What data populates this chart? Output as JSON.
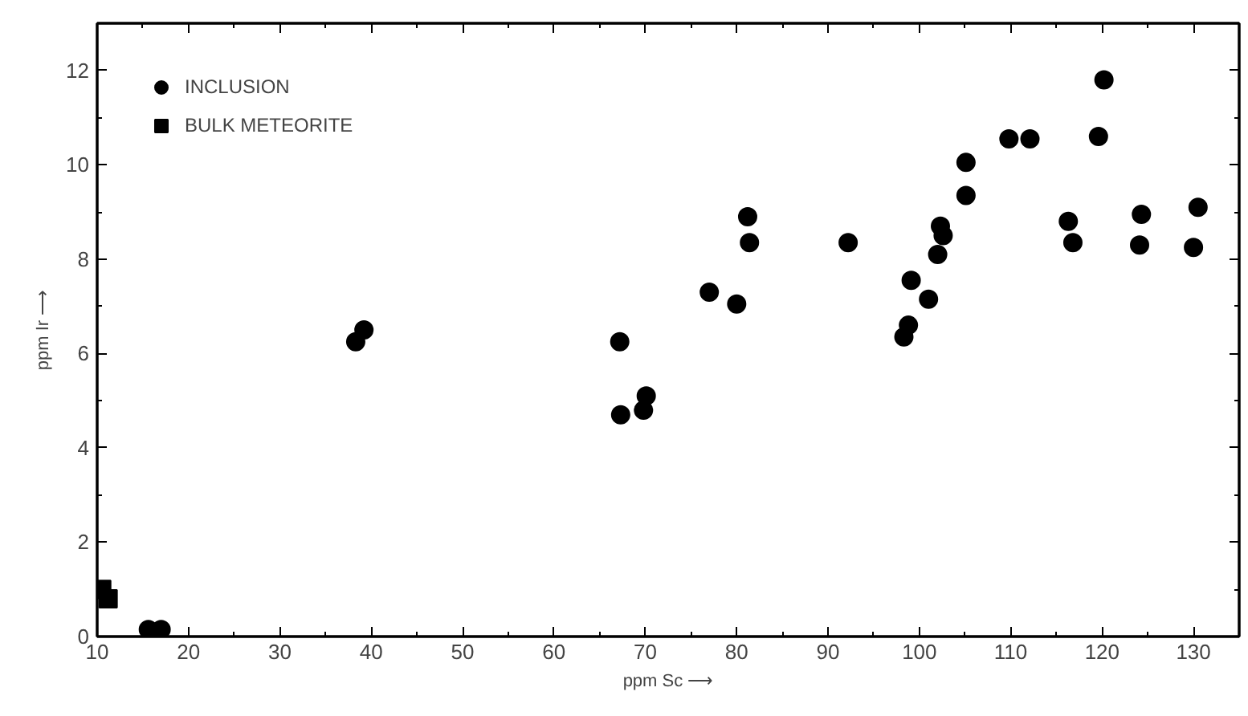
{
  "chart_data": {
    "type": "scatter",
    "xlabel": "ppm Sc ⟶",
    "ylabel": "ppm Ir ⟶",
    "xlim": [
      10,
      135
    ],
    "ylim": [
      0,
      13
    ],
    "xticks": [
      10,
      20,
      30,
      40,
      50,
      60,
      70,
      80,
      90,
      100,
      110,
      120,
      130
    ],
    "yticks": [
      0,
      2,
      4,
      6,
      8,
      10,
      12
    ],
    "grid": false,
    "legend": "top left",
    "series": [
      {
        "name": "INCLUSION",
        "color": "#000000",
        "marker": "circle",
        "x": [
          15.6,
          17.0,
          38.3,
          39.2,
          67.2,
          67.3,
          69.8,
          70.1,
          77,
          80,
          81.2,
          81.4,
          92.2,
          98.3,
          98.8,
          99.1,
          101,
          102,
          102.3,
          102.6,
          105.1,
          105.1,
          109.8,
          112.1,
          116.3,
          116.8,
          119.6,
          120.2,
          124.1,
          124.3,
          130,
          130.5
        ],
        "values": [
          0.15,
          0.15,
          6.25,
          6.5,
          6.25,
          4.7,
          4.8,
          5.1,
          7.3,
          7.05,
          8.9,
          8.35,
          8.35,
          6.35,
          6.6,
          7.55,
          7.15,
          8.1,
          8.7,
          8.5,
          10.05,
          9.35,
          10.55,
          10.55,
          8.8,
          8.35,
          10.6,
          11.8,
          8.3,
          8.95,
          8.25,
          9.1
        ]
      },
      {
        "name": "BULK METEORITE",
        "color": "#000000",
        "marker": "square",
        "x": [
          10.5,
          11.2
        ],
        "values": [
          1.0,
          0.8
        ]
      }
    ]
  }
}
